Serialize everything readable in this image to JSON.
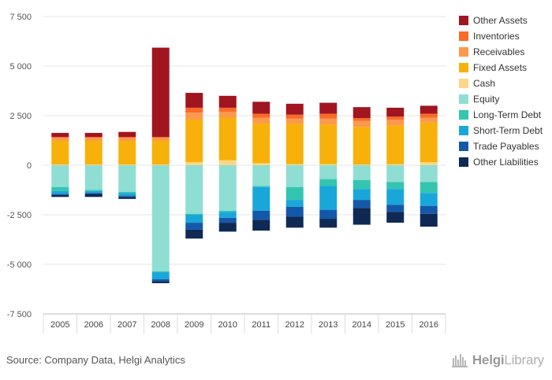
{
  "chart_data": {
    "type": "bar",
    "stacked": true,
    "categories": [
      "2005",
      "2006",
      "2007",
      "2008",
      "2009",
      "2010",
      "2011",
      "2012",
      "2013",
      "2014",
      "2015",
      "2016"
    ],
    "ylim": [
      -7500,
      7500
    ],
    "yticks": [
      7500,
      5000,
      2500,
      0,
      -2500,
      -5000,
      -7500
    ],
    "ytick_labels": [
      "7 500",
      "5 000",
      "2 500",
      "0",
      "-2 500",
      "-5 000",
      "-7 500"
    ],
    "grid": true,
    "legend_position": "right",
    "series": [
      {
        "name": "Cash",
        "color": "#fdd68a",
        "values": [
          30,
          30,
          30,
          30,
          150,
          250,
          100,
          50,
          50,
          30,
          50,
          150
        ]
      },
      {
        "name": "Fixed Assets",
        "color": "#f7b10a",
        "values": [
          1200,
          1200,
          1200,
          1200,
          2150,
          2150,
          2000,
          2050,
          2000,
          1900,
          1950,
          2000
        ]
      },
      {
        "name": "Receivables",
        "color": "#fb9a4c",
        "values": [
          150,
          150,
          150,
          150,
          350,
          300,
          300,
          250,
          300,
          300,
          300,
          250
        ]
      },
      {
        "name": "Inventories",
        "color": "#fa6a28",
        "values": [
          50,
          50,
          50,
          50,
          250,
          200,
          200,
          200,
          250,
          150,
          150,
          200
        ]
      },
      {
        "name": "Other Assets",
        "color": "#a0151f",
        "values": [
          200,
          200,
          250,
          4500,
          750,
          600,
          600,
          550,
          550,
          550,
          450,
          400
        ]
      },
      {
        "name": "Equity",
        "color": "#8fded3",
        "values": [
          -1100,
          -1250,
          -1350,
          -5350,
          -2450,
          -2300,
          -1050,
          -1100,
          -700,
          -750,
          -850,
          -850
        ]
      },
      {
        "name": "Long-Term Debt",
        "color": "#34c5b0",
        "values": [
          -200,
          -50,
          -50,
          -50,
          -50,
          -50,
          -50,
          -650,
          -350,
          -450,
          -350,
          -550
        ]
      },
      {
        "name": "Short-Term Debt",
        "color": "#19a7d9",
        "values": [
          -150,
          -100,
          -150,
          -350,
          -400,
          -300,
          -1200,
          -350,
          -1200,
          -550,
          -800,
          -650
        ]
      },
      {
        "name": "Trade Payables",
        "color": "#1459a9",
        "values": [
          -50,
          -50,
          -50,
          -100,
          -350,
          -250,
          -450,
          -500,
          -450,
          -400,
          -350,
          -400
        ]
      },
      {
        "name": "Other Liabilities",
        "color": "#0e2a54",
        "values": [
          -100,
          -150,
          -100,
          -100,
          -450,
          -450,
          -550,
          -550,
          -450,
          -850,
          -550,
          -650
        ]
      }
    ],
    "legend_order": [
      "Other Assets",
      "Inventories",
      "Receivables",
      "Fixed Assets",
      "Cash",
      "Equity",
      "Long-Term Debt",
      "Short-Term Debt",
      "Trade Payables",
      "Other Liabilities"
    ]
  },
  "footer": {
    "source": "Source: Company Data, Helgi Analytics",
    "brand_main": "Helgi",
    "brand_sub": "Library"
  }
}
